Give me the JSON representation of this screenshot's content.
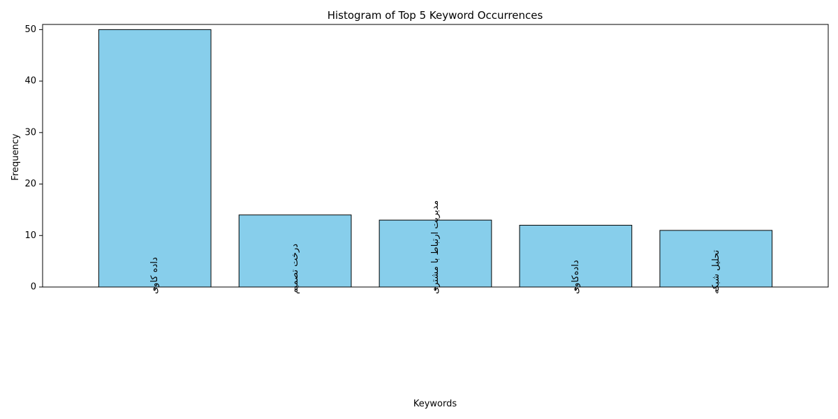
{
  "chart_data": {
    "type": "bar",
    "title": "Histogram of Top 5 Keyword Occurrences",
    "xlabel": "Keywords",
    "ylabel": "Frequency",
    "categories": [
      "داده کاوی",
      "درخت تصمیم",
      "مدیریت ارتباط با مشتری",
      "داده‌کاوی",
      "تحلیل شبکه"
    ],
    "values": [
      50,
      14,
      13,
      12,
      11
    ],
    "ylim": [
      0,
      51
    ],
    "yticks": [
      0,
      10,
      20,
      30,
      40,
      50
    ],
    "grid": false,
    "legend": "none",
    "bar_color": "#87CEEB",
    "bar_edge_color": "#000000",
    "x_tick_rotation": 90
  }
}
